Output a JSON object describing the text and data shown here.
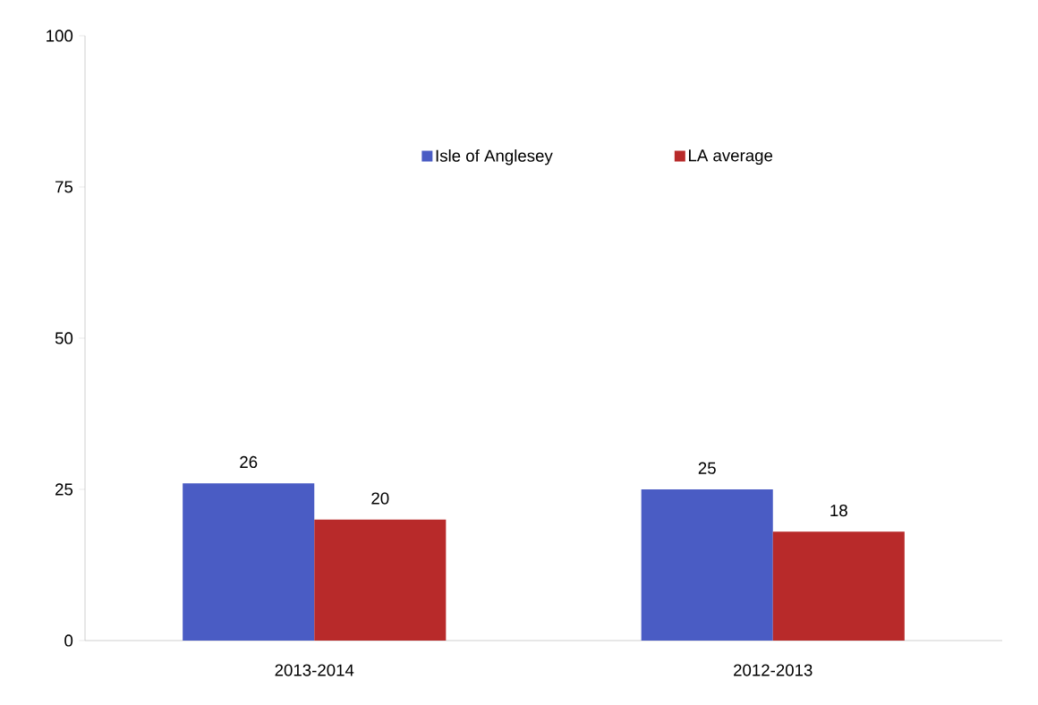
{
  "chart_data": {
    "type": "bar",
    "categories": [
      "2013-2014",
      "2012-2013"
    ],
    "series": [
      {
        "name": "Isle of Anglesey",
        "color": "#4a5cc4",
        "values": [
          26,
          25
        ]
      },
      {
        "name": "LA average",
        "color": "#b82a2a",
        "values": [
          20,
          18
        ]
      }
    ],
    "ylim": [
      0,
      100
    ],
    "yticks": [
      0,
      25,
      50,
      75,
      100
    ],
    "data_labels": true,
    "legend": "top",
    "grid": false
  }
}
